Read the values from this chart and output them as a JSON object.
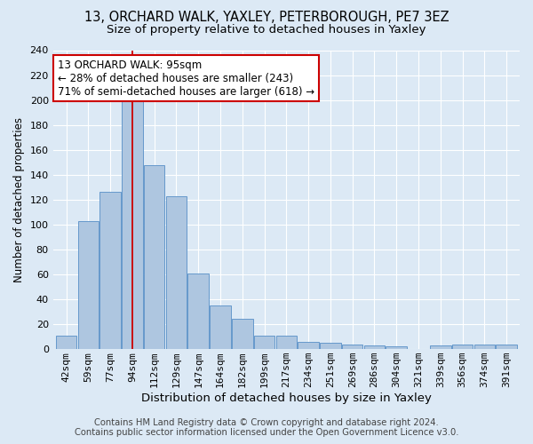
{
  "title": "13, ORCHARD WALK, YAXLEY, PETERBOROUGH, PE7 3EZ",
  "subtitle": "Size of property relative to detached houses in Yaxley",
  "xlabel": "Distribution of detached houses by size in Yaxley",
  "ylabel": "Number of detached properties",
  "bar_labels": [
    "42sqm",
    "59sqm",
    "77sqm",
    "94sqm",
    "112sqm",
    "129sqm",
    "147sqm",
    "164sqm",
    "182sqm",
    "199sqm",
    "217sqm",
    "234sqm",
    "251sqm",
    "269sqm",
    "286sqm",
    "304sqm",
    "321sqm",
    "339sqm",
    "356sqm",
    "374sqm",
    "391sqm"
  ],
  "bar_values": [
    11,
    103,
    126,
    200,
    148,
    123,
    61,
    35,
    24,
    11,
    11,
    6,
    5,
    4,
    3,
    2,
    0,
    3,
    4,
    4,
    4
  ],
  "bar_color": "#aec6e0",
  "bar_edgecolor": "#6699cc",
  "vline_color": "#cc0000",
  "vline_x": 3,
  "annotation_line1": "13 ORCHARD WALK: 95sqm",
  "annotation_line2": "← 28% of detached houses are smaller (243)",
  "annotation_line3": "71% of semi-detached houses are larger (618) →",
  "annotation_box_color": "#ffffff",
  "annotation_box_edgecolor": "#cc0000",
  "ylim": [
    0,
    240
  ],
  "yticks": [
    0,
    20,
    40,
    60,
    80,
    100,
    120,
    140,
    160,
    180,
    200,
    220,
    240
  ],
  "background_color": "#dce9f5",
  "grid_color": "#ffffff",
  "footer_line1": "Contains HM Land Registry data © Crown copyright and database right 2024.",
  "footer_line2": "Contains public sector information licensed under the Open Government Licence v3.0.",
  "title_fontsize": 10.5,
  "subtitle_fontsize": 9.5,
  "xlabel_fontsize": 9.5,
  "ylabel_fontsize": 8.5,
  "tick_fontsize": 8,
  "annotation_fontsize": 8.5,
  "footer_fontsize": 7.2
}
